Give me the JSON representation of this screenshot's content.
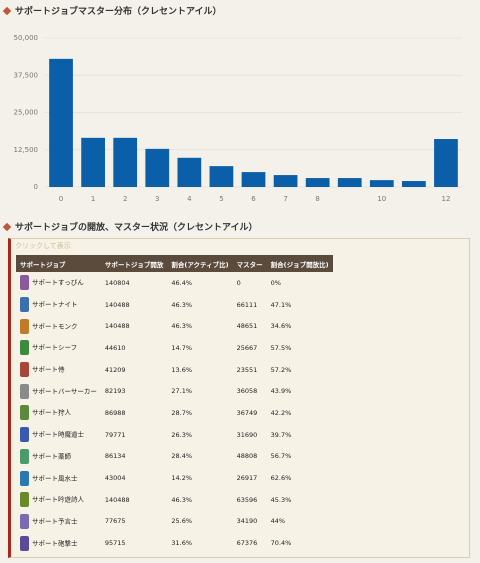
{
  "chart_data": {
    "type": "bar",
    "title": "サポートジョブマスター分布（クレセントアイル）",
    "categories": [
      "0",
      "1",
      "2",
      "3",
      "4",
      "5",
      "6",
      "7",
      "8",
      null,
      "10",
      null,
      "12"
    ],
    "values": [
      43000,
      16500,
      16500,
      12800,
      9800,
      7000,
      5000,
      4000,
      3000,
      3000,
      2300,
      2000,
      16100
    ],
    "color": "#0b5ea8",
    "ylim": [
      0,
      50000
    ],
    "yticks": [
      0,
      {
        "value": 12500,
        "label": "12,500"
      },
      {
        "value": 25000,
        "label": "25,000"
      },
      {
        "value": 37500,
        "label": "37,500"
      },
      {
        "value": 50000,
        "label": "50,000"
      }
    ],
    "grid": true
  },
  "section": {
    "title": "サポートジョブの開放、マスター状況（クレセントアイル）",
    "toggle": "クリックして表示"
  },
  "table": {
    "header": [
      "サポートジョブ",
      "サポートジョブ開放",
      "割合(アクティブ比)",
      "マスター",
      "割合(ジョブ開放比)"
    ],
    "rows": [
      [
        "サポートすっぴん",
        "140804",
        "46.4%",
        "0",
        "0%"
      ],
      [
        "サポートナイト",
        "140488",
        "46.3%",
        "66111",
        "47.1%"
      ],
      [
        "サポートモンク",
        "140488",
        "46.3%",
        "48651",
        "34.6%"
      ],
      [
        "サポートシーフ",
        "44610",
        "14.7%",
        "25667",
        "57.5%"
      ],
      [
        "サポート侍",
        "41209",
        "13.6%",
        "23551",
        "57.2%"
      ],
      [
        "サポートバーサーカー",
        "82193",
        "27.1%",
        "36058",
        "43.9%"
      ],
      [
        "サポート狩人",
        "86988",
        "28.7%",
        "36749",
        "42.2%"
      ],
      [
        "サポート時魔道士",
        "79771",
        "26.3%",
        "31690",
        "39.7%"
      ],
      [
        "サポート薬師",
        "86134",
        "28.4%",
        "48808",
        "56.7%"
      ],
      [
        "サポート風水士",
        "43004",
        "14.2%",
        "26917",
        "62.6%"
      ],
      [
        "サポート吟遊詩人",
        "140488",
        "46.3%",
        "63596",
        "45.3%"
      ],
      [
        "サポート予言士",
        "77675",
        "25.6%",
        "34190",
        "44%"
      ],
      [
        "サポート砲撃士",
        "95715",
        "31.6%",
        "67376",
        "70.4%"
      ]
    ]
  }
}
